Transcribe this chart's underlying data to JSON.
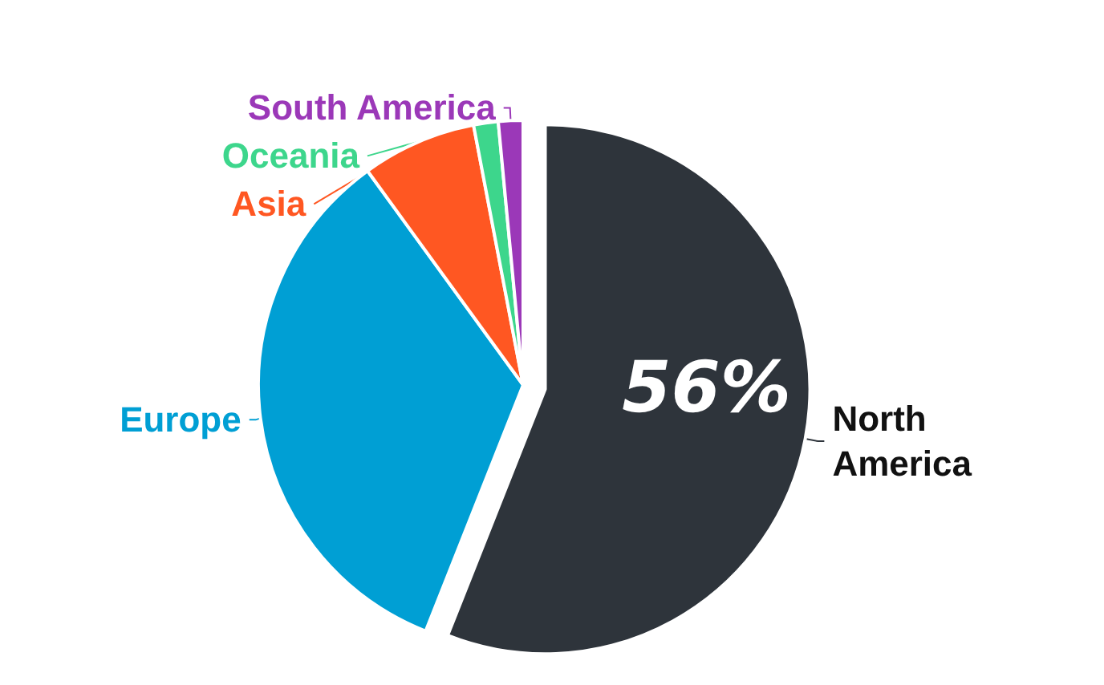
{
  "chart_data": {
    "type": "pie",
    "categories": [
      "North America",
      "Europe",
      "Asia",
      "Oceania",
      "South America"
    ],
    "values": [
      56,
      34,
      7,
      1.5,
      1.5
    ],
    "colors": [
      "#2e343b",
      "#009fd4",
      "#ff5722",
      "#3dd68c",
      "#9b38b8"
    ],
    "value_labels": [
      "56%",
      null,
      null,
      null,
      null
    ],
    "legend": false
  }
}
